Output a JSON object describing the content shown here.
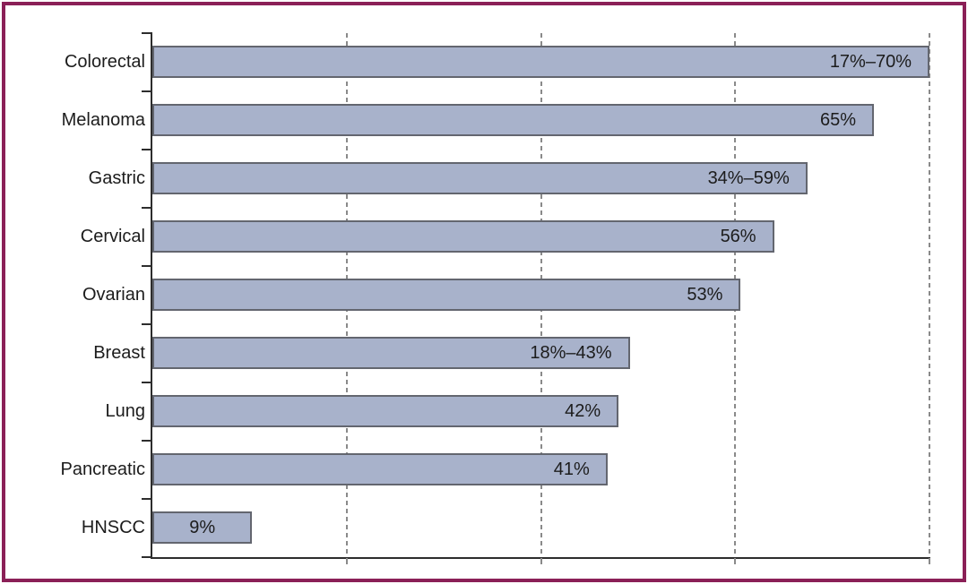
{
  "chart_data": {
    "type": "bar",
    "orientation": "horizontal",
    "categories": [
      "Colorectal",
      "Melanoma",
      "Gastric",
      "Cervical",
      "Ovarian",
      "Breast",
      "Lung",
      "Pancreatic",
      "HNSCC"
    ],
    "values": [
      70,
      65,
      59,
      56,
      53,
      43,
      42,
      41,
      9
    ],
    "value_labels": [
      "17%–70%",
      "65%",
      "34%–59%",
      "56%",
      "53%",
      "18%–43%",
      "42%",
      "41%",
      "9%"
    ],
    "xlim": [
      0,
      70
    ],
    "gridline_values": [
      17.5,
      35,
      52.5,
      70
    ],
    "grid_style": "dashed-vertical",
    "legend_position": "none",
    "value_label_position": "inside-end"
  },
  "colors": {
    "bar_fill": "#a8b2cb",
    "bar_border": "#63666f",
    "gridline": "#8a8a8a",
    "axis": "#2d2d2d",
    "text": "#1c1c1c",
    "frame_border": "#8b2057",
    "background": "#ffffff"
  }
}
